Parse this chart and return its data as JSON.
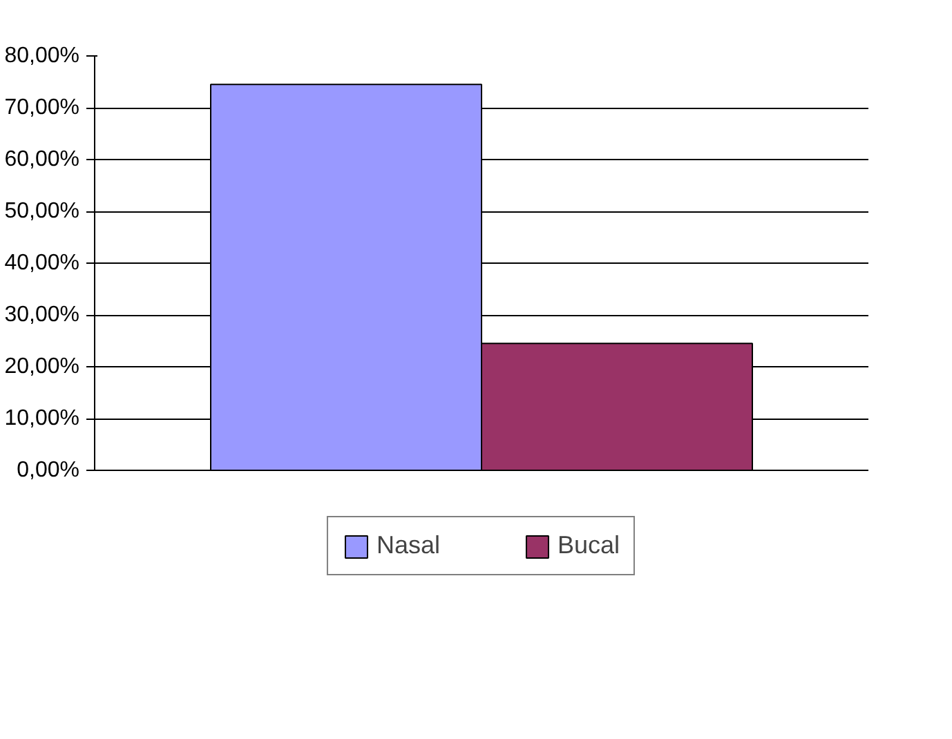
{
  "chart_data": {
    "type": "bar",
    "categories": [
      null
    ],
    "series": [
      {
        "name": "Nasal",
        "color": "#9999ff",
        "values": [
          74.5
        ]
      },
      {
        "name": "Bucal",
        "color": "#993366",
        "values": [
          24.5
        ]
      }
    ],
    "ylim": [
      0,
      80
    ],
    "yticks": [
      {
        "value": 0,
        "label": "0,00%"
      },
      {
        "value": 10,
        "label": "10,00%"
      },
      {
        "value": 20,
        "label": "20,00%"
      },
      {
        "value": 30,
        "label": "30,00%"
      },
      {
        "value": 40,
        "label": "40,00%"
      },
      {
        "value": 50,
        "label": "50,00%"
      },
      {
        "value": 60,
        "label": "60,00%"
      },
      {
        "value": 70,
        "label": "70,00%"
      },
      {
        "value": 80,
        "label": "80,00%"
      }
    ],
    "grid": "y",
    "legend": "bottom"
  }
}
